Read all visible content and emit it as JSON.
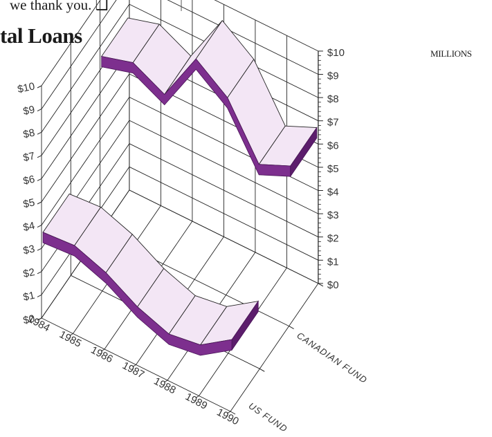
{
  "header": {
    "top_text": "we thank you. ❑",
    "title": "tal Loans",
    "units": "MILLIONS"
  },
  "colors": {
    "ribbon_face": "#f3e6f5",
    "ribbon_edge": "#7d2f8e",
    "grid": "#222222"
  },
  "chart_data": {
    "type": "3d-ribbon-line",
    "title": "tal Loans",
    "x": [
      "1984",
      "1985",
      "1986",
      "1987",
      "1988",
      "1989",
      "1990"
    ],
    "series": [
      {
        "name": "CANADIAN FUND",
        "values": [
          7.5,
          7.9,
          7.2,
          9.4,
          8.4,
          6.2,
          6.8
        ]
      },
      {
        "name": "US FUND",
        "values": [
          3.6,
          3.7,
          3.2,
          2.4,
          1.9,
          2.1,
          3.0
        ]
      }
    ],
    "ylabel": "MILLIONS",
    "ylim": [
      0,
      10
    ],
    "yticks": [
      "$0",
      "$1",
      "$2",
      "$3",
      "$4",
      "$5",
      "$6",
      "$7",
      "$8",
      "$9",
      "$10"
    ],
    "depth_labels": [
      "US FUND",
      "CANADIAN FUND"
    ],
    "grid": true
  }
}
